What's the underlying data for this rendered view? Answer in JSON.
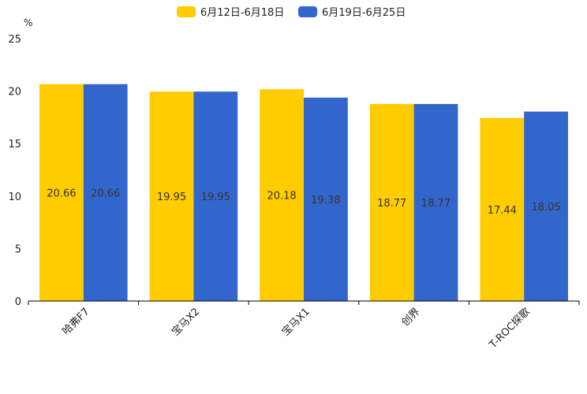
{
  "chart_data": {
    "type": "bar",
    "title": "",
    "ylabel": "%",
    "xlabel": "",
    "ylim": [
      0,
      25
    ],
    "yticks": [
      0,
      5,
      10,
      15,
      20,
      25
    ],
    "grid": false,
    "legend_position": "top-center",
    "categories": [
      "哈弗F7",
      "宝马X2",
      "宝马X1",
      "创界",
      "T-ROC探歌"
    ],
    "series": [
      {
        "name": "6月12日-6月18日",
        "color": "#FFCC00",
        "values": [
          20.66,
          19.95,
          20.18,
          18.77,
          17.44
        ]
      },
      {
        "name": "6月19日-6月25日",
        "color": "#3366CC",
        "values": [
          20.66,
          19.95,
          19.38,
          18.77,
          18.05
        ]
      }
    ]
  }
}
